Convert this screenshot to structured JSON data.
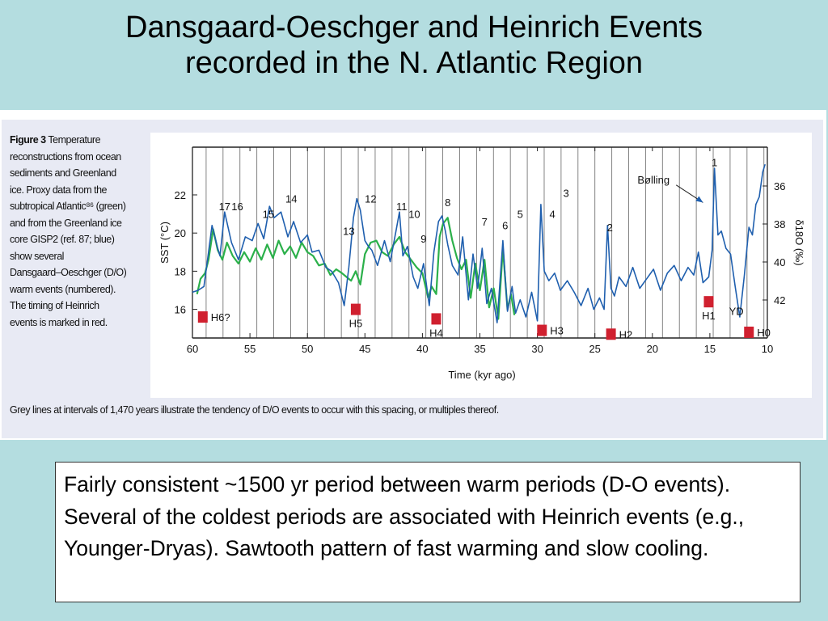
{
  "slide": {
    "title_line1": "Dansgaard-Oeschger and Heinrich Events",
    "title_line2": "recorded in the N. Atlantic Region"
  },
  "figure": {
    "caption_label": "Figure 3",
    "caption_lines": [
      "Temperature",
      "reconstructions from ocean",
      "sediments and Greenland",
      "ice. Proxy data from the",
      "subtropical Atlantic⁸⁶ (green)",
      "and from the Greenland ice",
      "core GISP2 (ref. 87; blue)",
      "show several",
      "Dansgaard–Oeschger (D/O)",
      "warm events (numbered).",
      "The timing of Heinrich",
      "events is marked in red."
    ],
    "caption_bottom": "Grey lines at intervals of 1,470 years illustrate the tendency of D/O events to occur with this spacing, or multiples thereof."
  },
  "chart_data": {
    "type": "line",
    "xlabel": "Time (kyr ago)",
    "ylabel_left": "SST (°C)",
    "ylabel_right": "δ18O (‰)",
    "xlim": [
      60,
      10
    ],
    "x_ticks": [
      60,
      55,
      50,
      45,
      40,
      35,
      30,
      25,
      20,
      15,
      10
    ],
    "ylim_left": [
      14.5,
      24.5
    ],
    "y_ticks_left": [
      16,
      18,
      20,
      22
    ],
    "right_ticks": [
      36,
      38,
      40,
      42
    ],
    "grid_spacing_kyr": 1.47,
    "colors": {
      "greenland": "#1f5fae",
      "atlantic": "#2bb04a",
      "heinrich": "#d0202f",
      "grid": "#777777"
    },
    "series": [
      {
        "key": "greenland",
        "x": [
          60.0,
          59.5,
          59.0,
          58.6,
          58.3,
          57.8,
          57.6,
          57.2,
          56.6,
          56.0,
          55.4,
          54.8,
          54.3,
          53.8,
          53.3,
          52.9,
          52.3,
          51.7,
          51.2,
          50.6,
          50.0,
          49.6,
          49.0,
          48.4,
          47.9,
          47.3,
          46.8,
          46.4,
          46.0,
          45.7,
          45.4,
          45.0,
          44.7,
          44.4,
          43.9,
          43.3,
          42.8,
          42.3,
          42.0,
          41.7,
          41.3,
          40.8,
          40.4,
          39.9,
          39.4,
          39.0,
          38.6,
          38.3,
          38.0,
          37.8,
          37.4,
          36.9,
          36.5,
          36.0,
          35.6,
          35.2,
          34.8,
          34.4,
          34.0,
          33.5,
          33.0,
          32.6,
          32.2,
          31.9,
          31.5,
          31.0,
          30.5,
          30.0,
          29.7,
          29.4,
          29.0,
          28.5,
          28.0,
          27.4,
          26.8,
          26.2,
          25.6,
          25.1,
          24.6,
          24.2,
          23.9,
          23.6,
          23.3,
          22.9,
          22.3,
          21.7,
          21.1,
          20.5,
          19.9,
          19.3,
          18.7,
          18.1,
          17.5,
          16.9,
          16.4,
          16.0,
          15.6,
          15.1,
          14.8,
          14.6,
          14.3,
          14.0,
          13.6,
          13.2,
          12.8,
          12.4,
          12.0,
          11.6,
          11.3,
          11.0,
          10.7,
          10.4,
          10.2
        ],
        "y": [
          16.9,
          17.0,
          17.2,
          19.0,
          20.4,
          19.2,
          18.8,
          21.1,
          19.5,
          18.6,
          19.8,
          19.6,
          20.5,
          19.7,
          21.4,
          20.8,
          21.1,
          19.8,
          20.6,
          19.5,
          19.9,
          19.0,
          19.1,
          18.2,
          18.0,
          17.4,
          16.2,
          18.2,
          20.8,
          21.8,
          21.2,
          19.6,
          19.3,
          19.1,
          18.3,
          19.6,
          18.5,
          20.1,
          21.1,
          18.8,
          19.3,
          17.7,
          17.1,
          18.4,
          16.2,
          19.0,
          20.6,
          20.9,
          20.1,
          19.4,
          18.3,
          17.8,
          19.8,
          16.5,
          18.9,
          17.1,
          19.2,
          16.3,
          17.1,
          15.3,
          19.6,
          15.9,
          17.2,
          15.8,
          16.5,
          15.6,
          16.9,
          15.4,
          21.5,
          18.0,
          17.5,
          17.9,
          17.0,
          17.5,
          16.9,
          16.2,
          17.1,
          16.0,
          16.6,
          16.0,
          20.4,
          17.1,
          16.7,
          17.7,
          17.2,
          18.2,
          17.1,
          17.6,
          18.1,
          17.0,
          17.9,
          18.3,
          17.5,
          18.2,
          17.8,
          19.0,
          17.4,
          17.7,
          19.1,
          23.4,
          19.9,
          20.1,
          19.2,
          18.9,
          17.2,
          15.6,
          17.8,
          20.3,
          19.9,
          21.5,
          21.9,
          23.2,
          23.6
        ]
      },
      {
        "key": "atlantic",
        "x": [
          59.6,
          59.3,
          58.9,
          58.6,
          58.2,
          57.8,
          57.4,
          57.0,
          56.5,
          56.0,
          55.5,
          55.0,
          54.5,
          54.0,
          53.5,
          53.0,
          52.5,
          52.0,
          51.5,
          51.0,
          50.5,
          50.0,
          49.5,
          49.0,
          48.5,
          48.0,
          47.5,
          47.0,
          46.6,
          46.2,
          45.8,
          45.4,
          45.0,
          44.5,
          44.0,
          43.5,
          43.0,
          42.5,
          42.0,
          41.5,
          41.0,
          40.5,
          40.0,
          39.5,
          39.2,
          38.8,
          38.5,
          38.2,
          37.8,
          37.4,
          37.0,
          36.6,
          36.2,
          35.8,
          35.4,
          35.0,
          34.6,
          34.2,
          33.8,
          33.4,
          33.0,
          32.6,
          32.3,
          32.0
        ],
        "y": [
          16.8,
          17.6,
          17.9,
          18.6,
          20.2,
          19.1,
          18.6,
          19.5,
          18.8,
          18.4,
          19.0,
          18.5,
          19.2,
          18.6,
          19.4,
          18.7,
          19.6,
          18.9,
          19.3,
          18.7,
          19.5,
          19.0,
          18.8,
          18.3,
          18.4,
          17.8,
          18.1,
          17.9,
          17.7,
          17.5,
          18.0,
          17.3,
          18.9,
          19.5,
          19.6,
          19.0,
          18.8,
          19.4,
          19.8,
          19.0,
          18.6,
          18.2,
          17.9,
          16.6,
          17.2,
          16.8,
          19.8,
          20.5,
          20.8,
          19.6,
          18.7,
          18.1,
          18.6,
          16.6,
          18.4,
          17.0,
          18.6,
          16.1,
          17.1,
          15.5,
          19.2,
          16.0,
          16.8,
          15.7
        ]
      }
    ],
    "event_labels": [
      {
        "text": "17",
        "x": 57.2,
        "y": 21.2
      },
      {
        "text": "16",
        "x": 56.1,
        "y": 21.2
      },
      {
        "text": "15",
        "x": 53.4,
        "y": 20.8
      },
      {
        "text": "14",
        "x": 51.4,
        "y": 21.6
      },
      {
        "text": "13",
        "x": 46.4,
        "y": 19.9
      },
      {
        "text": "12",
        "x": 44.5,
        "y": 21.6
      },
      {
        "text": "11",
        "x": 41.8,
        "y": 21.2
      },
      {
        "text": "10",
        "x": 40.7,
        "y": 20.8
      },
      {
        "text": "9",
        "x": 39.9,
        "y": 19.5
      },
      {
        "text": "8",
        "x": 37.8,
        "y": 21.4
      },
      {
        "text": "7",
        "x": 34.6,
        "y": 20.4
      },
      {
        "text": "6",
        "x": 32.8,
        "y": 20.2
      },
      {
        "text": "5",
        "x": 31.5,
        "y": 20.8
      },
      {
        "text": "4",
        "x": 28.7,
        "y": 20.8
      },
      {
        "text": "3",
        "x": 27.5,
        "y": 21.9
      },
      {
        "text": "2",
        "x": 23.7,
        "y": 20.1
      },
      {
        "text": "1",
        "x": 14.6,
        "y": 23.5
      },
      {
        "text": "Bølling",
        "x": 19.9,
        "y": 22.6
      }
    ],
    "heinrich_events": [
      {
        "label": "H6?",
        "x": 59.1,
        "y": 15.6,
        "label_side": "right"
      },
      {
        "label": "H5",
        "x": 45.8,
        "y": 16.0,
        "label_side": "below"
      },
      {
        "label": "H4",
        "x": 38.8,
        "y": 15.5,
        "label_side": "below"
      },
      {
        "label": "H3",
        "x": 29.6,
        "y": 14.9,
        "label_side": "right"
      },
      {
        "label": "H2",
        "x": 23.6,
        "y": 14.7,
        "label_side": "right"
      },
      {
        "label": "H1",
        "x": 15.1,
        "y": 16.4,
        "label_side": "below"
      },
      {
        "label": "H0",
        "x": 11.6,
        "y": 14.8,
        "label_side": "right"
      }
    ],
    "annotations": [
      {
        "text": "YD",
        "x": 12.7,
        "y": 15.7
      }
    ]
  },
  "note": {
    "text": "Fairly consistent ~1500 yr period between warm periods (D-O events). Several of the coldest periods are associated with Heinrich events (e.g., Younger-Dryas). Sawtooth pattern of fast warming and slow cooling."
  }
}
